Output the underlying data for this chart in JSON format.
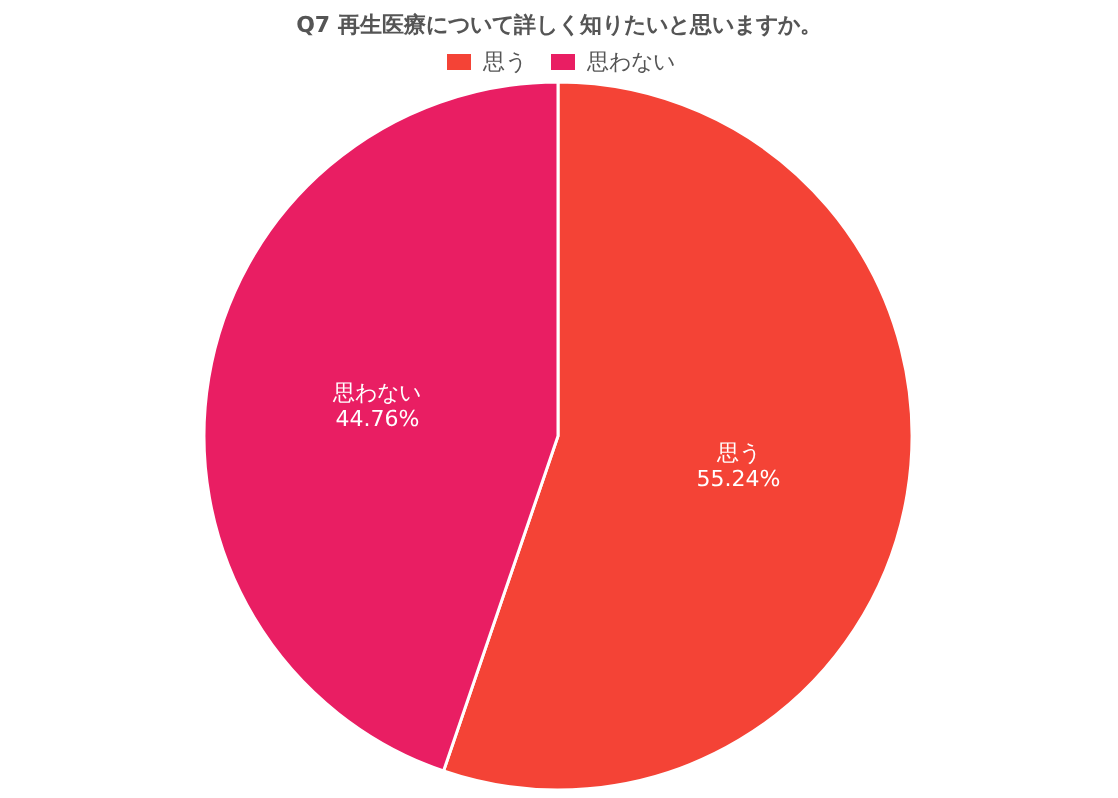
{
  "chart_data": {
    "type": "pie",
    "title": "Q7 再生医療について詳しく知りたいと思いますか。",
    "categories": [
      "思う",
      "思わない"
    ],
    "values": [
      55.24,
      44.76
    ],
    "value_labels": [
      "55.24%",
      "44.76%"
    ],
    "colors": [
      "#f44336",
      "#e91e63"
    ],
    "legend": "top"
  }
}
